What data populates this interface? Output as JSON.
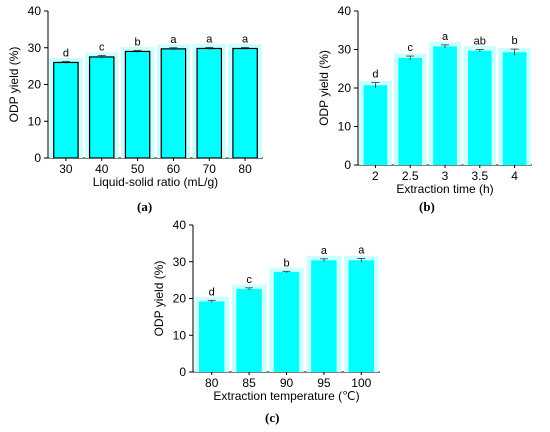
{
  "colors": {
    "bar_fill": "#00FFFF",
    "bar_halo": "#CCFFFF",
    "axis": "#000000",
    "text": "#000000"
  },
  "chart_data": [
    {
      "type": "bar",
      "panel_label": "(a)",
      "categories": [
        "30",
        "40",
        "50",
        "60",
        "70",
        "80"
      ],
      "values": [
        26,
        27.5,
        29,
        29.7,
        29.8,
        29.8
      ],
      "errors": [
        0.3,
        0.4,
        0.3,
        0.3,
        0.3,
        0.3
      ],
      "letters": [
        "d",
        "c",
        "b",
        "a",
        "a",
        "a"
      ],
      "xlabel": "Liquid-solid ratio (mL/g)",
      "ylabel": "ODP yield (%)",
      "ylim": [
        0,
        40
      ],
      "yticks": [
        0,
        10,
        20,
        30,
        40
      ],
      "grid": false
    },
    {
      "type": "bar",
      "panel_label": "(b)",
      "categories": [
        "2",
        "2.5",
        "3",
        "3.5",
        "4"
      ],
      "values": [
        20.7,
        27.8,
        30.8,
        29.7,
        29.3
      ],
      "errors": [
        0.7,
        0.5,
        0.4,
        0.3,
        0.8
      ],
      "letters": [
        "d",
        "c",
        "a",
        "ab",
        "b"
      ],
      "xlabel": "Extraction time (h)",
      "ylabel": "ODP yield (%)",
      "ylim": [
        0,
        40
      ],
      "yticks": [
        0,
        10,
        20,
        30,
        40
      ],
      "grid": false
    },
    {
      "type": "bar",
      "panel_label": "(c)",
      "categories": [
        "80",
        "85",
        "90",
        "95",
        "100"
      ],
      "values": [
        19.2,
        22.6,
        27.2,
        30.4,
        30.4
      ],
      "errors": [
        0.3,
        0.3,
        0.2,
        0.4,
        0.5
      ],
      "letters": [
        "d",
        "c",
        "b",
        "a",
        "a"
      ],
      "xlabel": "Extraction temperature (℃)",
      "ylabel": "ODP yield (%)",
      "ylim": [
        0,
        40
      ],
      "yticks": [
        0,
        10,
        20,
        30,
        40
      ],
      "grid": false
    }
  ]
}
